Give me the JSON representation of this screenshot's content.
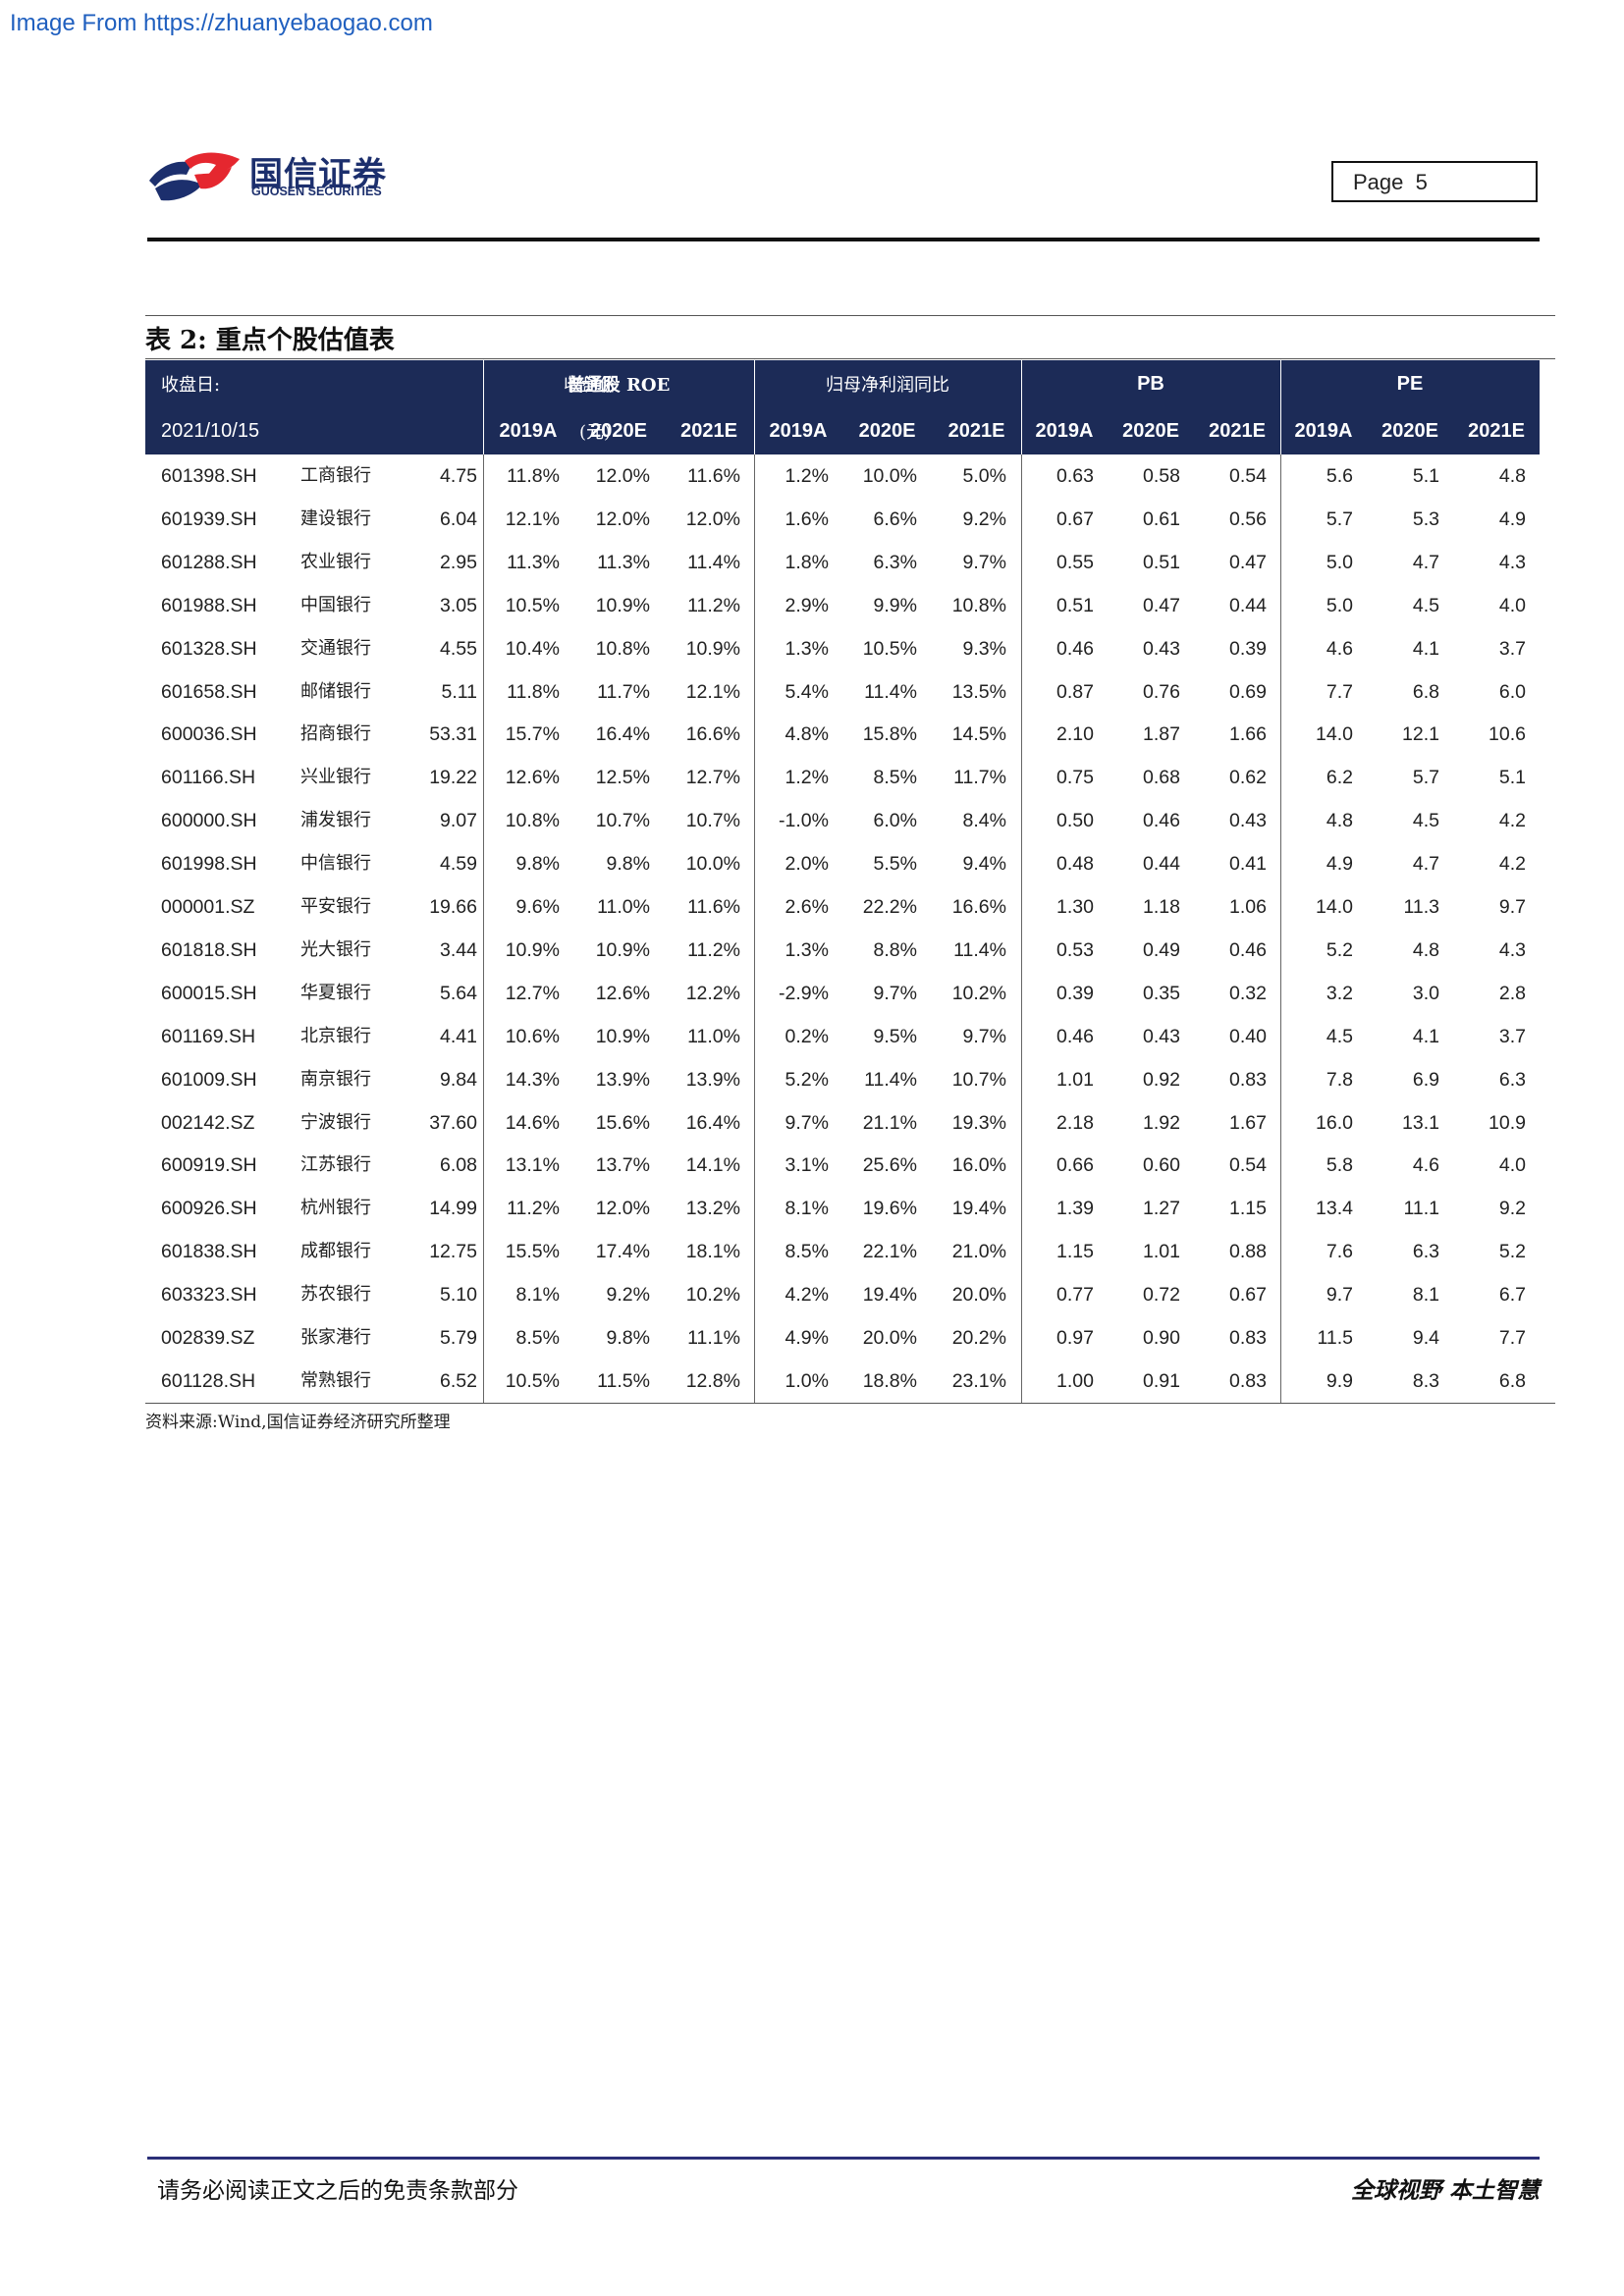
{
  "source_link": "Image From https://zhuanyebaogao.com",
  "logo": {
    "cn": "国信证券",
    "en": "GUOSEN SECURITIES",
    "colors": {
      "red": "#e5272f",
      "blue": "#1c2f6d"
    }
  },
  "page_label": "Page",
  "page_number": "5",
  "table": {
    "title": "表 2:  重点个股估值表",
    "header": {
      "close_date_label": "收盘日:",
      "close_date": "2021/10/15",
      "close_price_label": "收盘价",
      "close_price_unit": "(元)",
      "groups": [
        "普通股 ROE",
        "归母净利润同比",
        "PB",
        "PE"
      ],
      "years": [
        "2019A",
        "2020E",
        "2021E"
      ]
    },
    "header_color": "#1c2b57",
    "rows": [
      {
        "code": "601398.SH",
        "name": "工商银行",
        "price": "4.75",
        "roe": [
          "11.8%",
          "12.0%",
          "11.6%"
        ],
        "np": [
          "1.2%",
          "10.0%",
          "5.0%"
        ],
        "pb": [
          "0.63",
          "0.58",
          "0.54"
        ],
        "pe": [
          "5.6",
          "5.1",
          "4.8"
        ]
      },
      {
        "code": "601939.SH",
        "name": "建设银行",
        "price": "6.04",
        "roe": [
          "12.1%",
          "12.0%",
          "12.0%"
        ],
        "np": [
          "1.6%",
          "6.6%",
          "9.2%"
        ],
        "pb": [
          "0.67",
          "0.61",
          "0.56"
        ],
        "pe": [
          "5.7",
          "5.3",
          "4.9"
        ]
      },
      {
        "code": "601288.SH",
        "name": "农业银行",
        "price": "2.95",
        "roe": [
          "11.3%",
          "11.3%",
          "11.4%"
        ],
        "np": [
          "1.8%",
          "6.3%",
          "9.7%"
        ],
        "pb": [
          "0.55",
          "0.51",
          "0.47"
        ],
        "pe": [
          "5.0",
          "4.7",
          "4.3"
        ]
      },
      {
        "code": "601988.SH",
        "name": "中国银行",
        "price": "3.05",
        "roe": [
          "10.5%",
          "10.9%",
          "11.2%"
        ],
        "np": [
          "2.9%",
          "9.9%",
          "10.8%"
        ],
        "pb": [
          "0.51",
          "0.47",
          "0.44"
        ],
        "pe": [
          "5.0",
          "4.5",
          "4.0"
        ]
      },
      {
        "code": "601328.SH",
        "name": "交通银行",
        "price": "4.55",
        "roe": [
          "10.4%",
          "10.8%",
          "10.9%"
        ],
        "np": [
          "1.3%",
          "10.5%",
          "9.3%"
        ],
        "pb": [
          "0.46",
          "0.43",
          "0.39"
        ],
        "pe": [
          "4.6",
          "4.1",
          "3.7"
        ]
      },
      {
        "code": "601658.SH",
        "name": "邮储银行",
        "price": "5.11",
        "roe": [
          "11.8%",
          "11.7%",
          "12.1%"
        ],
        "np": [
          "5.4%",
          "11.4%",
          "13.5%"
        ],
        "pb": [
          "0.87",
          "0.76",
          "0.69"
        ],
        "pe": [
          "7.7",
          "6.8",
          "6.0"
        ]
      },
      {
        "code": "600036.SH",
        "name": "招商银行",
        "price": "53.31",
        "roe": [
          "15.7%",
          "16.4%",
          "16.6%"
        ],
        "np": [
          "4.8%",
          "15.8%",
          "14.5%"
        ],
        "pb": [
          "2.10",
          "1.87",
          "1.66"
        ],
        "pe": [
          "14.0",
          "12.1",
          "10.6"
        ]
      },
      {
        "code": "601166.SH",
        "name": "兴业银行",
        "price": "19.22",
        "roe": [
          "12.6%",
          "12.5%",
          "12.7%"
        ],
        "np": [
          "1.2%",
          "8.5%",
          "11.7%"
        ],
        "pb": [
          "0.75",
          "0.68",
          "0.62"
        ],
        "pe": [
          "6.2",
          "5.7",
          "5.1"
        ]
      },
      {
        "code": "600000.SH",
        "name": "浦发银行",
        "price": "9.07",
        "roe": [
          "10.8%",
          "10.7%",
          "10.7%"
        ],
        "np": [
          "-1.0%",
          "6.0%",
          "8.4%"
        ],
        "pb": [
          "0.50",
          "0.46",
          "0.43"
        ],
        "pe": [
          "4.8",
          "4.5",
          "4.2"
        ]
      },
      {
        "code": "601998.SH",
        "name": "中信银行",
        "price": "4.59",
        "roe": [
          "9.8%",
          "9.8%",
          "10.0%"
        ],
        "np": [
          "2.0%",
          "5.5%",
          "9.4%"
        ],
        "pb": [
          "0.48",
          "0.44",
          "0.41"
        ],
        "pe": [
          "4.9",
          "4.7",
          "4.2"
        ]
      },
      {
        "code": "000001.SZ",
        "name": "平安银行",
        "price": "19.66",
        "roe": [
          "9.6%",
          "11.0%",
          "11.6%"
        ],
        "np": [
          "2.6%",
          "22.2%",
          "16.6%"
        ],
        "pb": [
          "1.30",
          "1.18",
          "1.06"
        ],
        "pe": [
          "14.0",
          "11.3",
          "9.7"
        ]
      },
      {
        "code": "601818.SH",
        "name": "光大银行",
        "price": "3.44",
        "roe": [
          "10.9%",
          "10.9%",
          "11.2%"
        ],
        "np": [
          "1.3%",
          "8.8%",
          "11.4%"
        ],
        "pb": [
          "0.53",
          "0.49",
          "0.46"
        ],
        "pe": [
          "5.2",
          "4.8",
          "4.3"
        ]
      },
      {
        "code": "600015.SH",
        "name": "华夏银行",
        "price": "5.64",
        "roe": [
          "12.7%",
          "12.6%",
          "12.2%"
        ],
        "np": [
          "-2.9%",
          "9.7%",
          "10.2%"
        ],
        "pb": [
          "0.39",
          "0.35",
          "0.32"
        ],
        "pe": [
          "3.2",
          "3.0",
          "2.8"
        ]
      },
      {
        "code": "601169.SH",
        "name": "北京银行",
        "price": "4.41",
        "roe": [
          "10.6%",
          "10.9%",
          "11.0%"
        ],
        "np": [
          "0.2%",
          "9.5%",
          "9.7%"
        ],
        "pb": [
          "0.46",
          "0.43",
          "0.40"
        ],
        "pe": [
          "4.5",
          "4.1",
          "3.7"
        ]
      },
      {
        "code": "601009.SH",
        "name": "南京银行",
        "price": "9.84",
        "roe": [
          "14.3%",
          "13.9%",
          "13.9%"
        ],
        "np": [
          "5.2%",
          "11.4%",
          "10.7%"
        ],
        "pb": [
          "1.01",
          "0.92",
          "0.83"
        ],
        "pe": [
          "7.8",
          "6.9",
          "6.3"
        ]
      },
      {
        "code": "002142.SZ",
        "name": "宁波银行",
        "price": "37.60",
        "roe": [
          "14.6%",
          "15.6%",
          "16.4%"
        ],
        "np": [
          "9.7%",
          "21.1%",
          "19.3%"
        ],
        "pb": [
          "2.18",
          "1.92",
          "1.67"
        ],
        "pe": [
          "16.0",
          "13.1",
          "10.9"
        ]
      },
      {
        "code": "600919.SH",
        "name": "江苏银行",
        "price": "6.08",
        "roe": [
          "13.1%",
          "13.7%",
          "14.1%"
        ],
        "np": [
          "3.1%",
          "25.6%",
          "16.0%"
        ],
        "pb": [
          "0.66",
          "0.60",
          "0.54"
        ],
        "pe": [
          "5.8",
          "4.6",
          "4.0"
        ]
      },
      {
        "code": "600926.SH",
        "name": "杭州银行",
        "price": "14.99",
        "roe": [
          "11.2%",
          "12.0%",
          "13.2%"
        ],
        "np": [
          "8.1%",
          "19.6%",
          "19.4%"
        ],
        "pb": [
          "1.39",
          "1.27",
          "1.15"
        ],
        "pe": [
          "13.4",
          "11.1",
          "9.2"
        ]
      },
      {
        "code": "601838.SH",
        "name": "成都银行",
        "price": "12.75",
        "roe": [
          "15.5%",
          "17.4%",
          "18.1%"
        ],
        "np": [
          "8.5%",
          "22.1%",
          "21.0%"
        ],
        "pb": [
          "1.15",
          "1.01",
          "0.88"
        ],
        "pe": [
          "7.6",
          "6.3",
          "5.2"
        ]
      },
      {
        "code": "603323.SH",
        "name": "苏农银行",
        "price": "5.10",
        "roe": [
          "8.1%",
          "9.2%",
          "10.2%"
        ],
        "np": [
          "4.2%",
          "19.4%",
          "20.0%"
        ],
        "pb": [
          "0.77",
          "0.72",
          "0.67"
        ],
        "pe": [
          "9.7",
          "8.1",
          "6.7"
        ]
      },
      {
        "code": "002839.SZ",
        "name": "张家港行",
        "price": "5.79",
        "roe": [
          "8.5%",
          "9.8%",
          "11.1%"
        ],
        "np": [
          "4.9%",
          "20.0%",
          "20.2%"
        ],
        "pb": [
          "0.97",
          "0.90",
          "0.83"
        ],
        "pe": [
          "11.5",
          "9.4",
          "7.7"
        ]
      },
      {
        "code": "601128.SH",
        "name": "常熟银行",
        "price": "6.52",
        "roe": [
          "10.5%",
          "11.5%",
          "12.8%"
        ],
        "np": [
          "1.0%",
          "18.8%",
          "23.1%"
        ],
        "pb": [
          "1.00",
          "0.91",
          "0.83"
        ],
        "pe": [
          "9.9",
          "8.3",
          "6.8"
        ]
      }
    ],
    "source_note": "资料来源:Wind,国信证券经济研究所整理"
  },
  "footer": {
    "disclaimer": "请务必阅读正文之后的免责条款部分",
    "slogan": "全球视野  本土智慧"
  }
}
